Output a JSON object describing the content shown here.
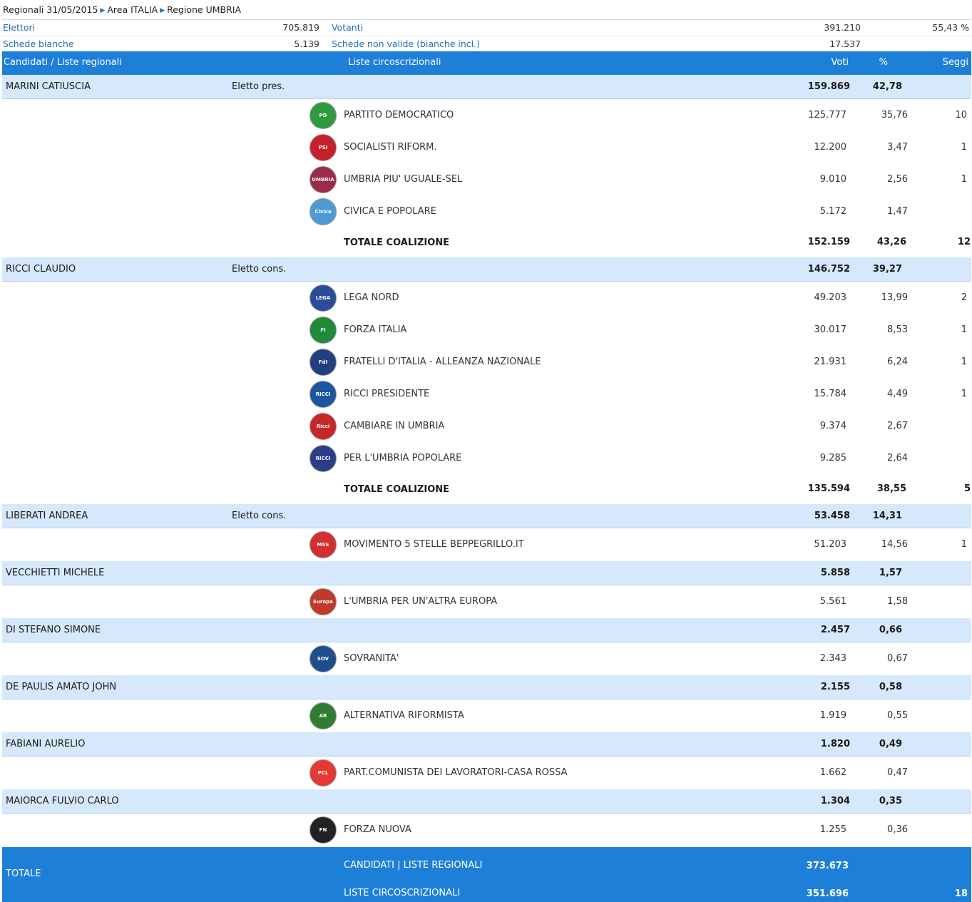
{
  "breadcrumb": {
    "part1": "Regionali 31/05/2015",
    "part2": "Area ITALIA",
    "part3": "Regione UMBRIA"
  },
  "stats": {
    "elettori_label": "Elettori",
    "elettori_value": "705.819",
    "votanti_label": "Votanti",
    "votanti_value": "391.210",
    "votanti_pct": "55,43 %",
    "bianche_label": "Schede bianche",
    "bianche_value": "5.139",
    "nonvalide_label": "Schede non valide (bianche incl.)",
    "nonvalide_value": "17.537"
  },
  "header": {
    "candidati": "Candidati / Liste regionali",
    "liste": "Liste circoscrizionali",
    "voti": "Voti",
    "pct": "%",
    "seggi": "Seggi"
  },
  "candidates": [
    {
      "name": "MARINI CATIUSCIA",
      "status": "Eletto pres.",
      "voti": "159.869",
      "pct": "42,78"
    },
    {
      "name": "RICCI CLAUDIO",
      "status": "Eletto cons.",
      "voti": "146.752",
      "pct": "39,27"
    },
    {
      "name": "LIBERATI ANDREA",
      "status": "Eletto cons.",
      "voti": "53.458",
      "pct": "14,31"
    },
    {
      "name": "VECCHIETTI MICHELE",
      "status": "",
      "voti": "5.858",
      "pct": "1,57"
    },
    {
      "name": "DI STEFANO SIMONE",
      "status": "",
      "voti": "2.457",
      "pct": "0,66"
    },
    {
      "name": "DE PAULIS AMATO JOHN",
      "status": "",
      "voti": "2.155",
      "pct": "0,58"
    },
    {
      "name": "FABIANI AURELIO",
      "status": "",
      "voti": "1.820",
      "pct": "0,49"
    },
    {
      "name": "MAIORCA FULVIO CARLO",
      "status": "",
      "voti": "1.304",
      "pct": "0,35"
    }
  ],
  "parties": [
    {
      "name": "PARTITO DEMOCRATICO",
      "voti": "125.777",
      "pct": "35,76",
      "seggi": "10",
      "logo_text": "PD",
      "color": "#2f9a3e"
    },
    {
      "name": "SOCIALISTI RIFORM.",
      "voti": "12.200",
      "pct": "3,47",
      "seggi": "1",
      "logo_text": "PSI",
      "color": "#c8202a"
    },
    {
      "name": "UMBRIA PIU' UGUALE-SEL",
      "voti": "9.010",
      "pct": "2,56",
      "seggi": "1",
      "logo_text": "UMBRIA",
      "color": "#9c2b4a"
    },
    {
      "name": "CIVICA E POPOLARE",
      "voti": "5.172",
      "pct": "1,47",
      "seggi": "",
      "logo_text": "Civica",
      "color": "#4d9ad6"
    },
    {
      "name": "LEGA NORD",
      "voti": "49.203",
      "pct": "13,99",
      "seggi": "2",
      "logo_text": "LEGA",
      "color": "#2a4c9a"
    },
    {
      "name": "FORZA ITALIA",
      "voti": "30.017",
      "pct": "8,53",
      "seggi": "1",
      "logo_text": "FI",
      "color": "#1f8a3a"
    },
    {
      "name": "FRATELLI D'ITALIA - ALLEANZA NAZIONALE",
      "voti": "21.931",
      "pct": "6,24",
      "seggi": "1",
      "logo_text": "FdI",
      "color": "#23407e"
    },
    {
      "name": "RICCI PRESIDENTE",
      "voti": "15.784",
      "pct": "4,49",
      "seggi": "1",
      "logo_text": "RICCI",
      "color": "#1a56a0"
    },
    {
      "name": "CAMBIARE IN UMBRIA",
      "voti": "9.374",
      "pct": "2,67",
      "seggi": "",
      "logo_text": "Ricci",
      "color": "#c62828"
    },
    {
      "name": "PER L'UMBRIA POPOLARE",
      "voti": "9.285",
      "pct": "2,64",
      "seggi": "",
      "logo_text": "RICCI",
      "color": "#2c3e87"
    },
    {
      "name": "MOVIMENTO 5 STELLE BEPPEGRILLO.IT",
      "voti": "51.203",
      "pct": "14,56",
      "seggi": "1",
      "logo_text": "M5S",
      "color": "#d32f2f"
    },
    {
      "name": "L'UMBRIA PER UN'ALTRA EUROPA",
      "voti": "5.561",
      "pct": "1,58",
      "seggi": "",
      "logo_text": "Europa",
      "color": "#c0392b"
    },
    {
      "name": "SOVRANITA'",
      "voti": "2.343",
      "pct": "0,67",
      "seggi": "",
      "logo_text": "SOV",
      "color": "#1f4e8c"
    },
    {
      "name": "ALTERNATIVA RIFORMISTA",
      "voti": "1.919",
      "pct": "0,55",
      "seggi": "",
      "logo_text": "AR",
      "color": "#2e7d32"
    },
    {
      "name": "PART.COMUNISTA DEI LAVORATORI-CASA ROSSA",
      "voti": "1.662",
      "pct": "0,47",
      "seggi": "",
      "logo_text": "PCL",
      "color": "#e53935"
    },
    {
      "name": "FORZA NUOVA",
      "voti": "1.255",
      "pct": "0,36",
      "seggi": "",
      "logo_text": "FN",
      "color": "#222222"
    }
  ],
  "coalitions": [
    {
      "label": "TOTALE COALIZIONE",
      "voti": "152.159",
      "pct": "43,26",
      "seggi": "12"
    },
    {
      "label": "TOTALE COALIZIONE",
      "voti": "135.594",
      "pct": "38,55",
      "seggi": "5"
    }
  ],
  "footer": {
    "totale": "TOTALE",
    "label1": "CANDIDATI | LISTE REGIONALI",
    "value1": "373.673",
    "label2": "LISTE CIRCOSCRIZIONALI",
    "value2": "351.696",
    "seggi": "18"
  }
}
